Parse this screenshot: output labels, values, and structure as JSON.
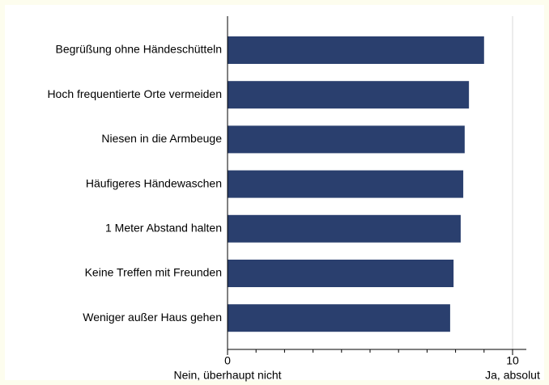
{
  "chart_data": {
    "type": "bar",
    "orientation": "horizontal",
    "categories": [
      "Begrüßung ohne Händeschütteln",
      "Hoch frequentierte Orte vermeiden",
      "Niesen in die Armbeuge",
      "Häufigeres Händewaschen",
      "1 Meter Abstand halten",
      "Keine Treffen mit Freunden",
      "Weniger außer Haus gehen"
    ],
    "values": [
      9.0,
      8.47,
      8.32,
      8.27,
      8.18,
      7.93,
      7.81
    ],
    "color": "#2a3f6e",
    "xlim": [
      0,
      10
    ],
    "xticks": [
      0,
      10
    ],
    "xminor_ticks": [
      1,
      2,
      3,
      4,
      5,
      6,
      7,
      8,
      9
    ],
    "x_end_labels": [
      "Nein, überhaupt nicht",
      "Ja, absolut"
    ],
    "grid": true
  }
}
